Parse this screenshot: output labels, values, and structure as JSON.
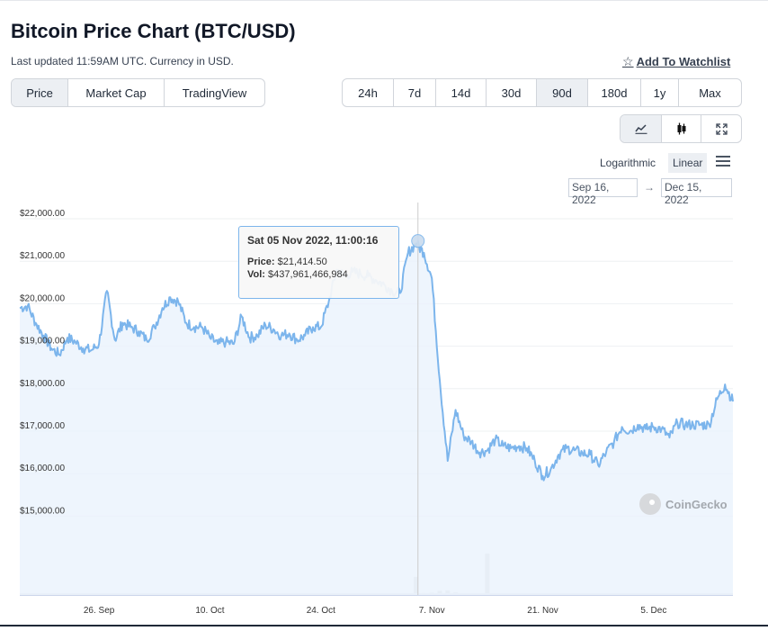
{
  "header": {
    "title": "Bitcoin Price Chart (BTC/USD)",
    "subtitle": "Last updated 11:59AM UTC. Currency in USD.",
    "watchlist_label": "Add To Watchlist"
  },
  "chart_tabs": [
    "Price",
    "Market Cap",
    "TradingView"
  ],
  "range_tabs": [
    "24h",
    "7d",
    "14d",
    "30d",
    "90d",
    "180d",
    "1y",
    "Max"
  ],
  "active_chart_tab": "Price",
  "active_range": "90d",
  "view_icons": [
    "line-chart-icon",
    "candlestick-icon",
    "fullscreen-icon"
  ],
  "scale": {
    "logarithmic_label": "Logarithmic",
    "linear_label": "Linear",
    "active": "Linear"
  },
  "date_range": {
    "from": "Sep 16, 2022",
    "arrow": "→",
    "to": "Dec 15, 2022"
  },
  "tooltip": {
    "date": "Sat 05 Nov 2022, 11:00:16",
    "price_label": "Price:",
    "price_value": "$21,414.50",
    "vol_label": "Vol:",
    "vol_value": "$437,961,466,984"
  },
  "watermark": "CoinGecko",
  "colors": {
    "line": "#7cb5ec",
    "area": "#eaf3fc",
    "volume": "#dcdcdc",
    "grid": "#eef0f2"
  },
  "chart_data": {
    "type": "area",
    "title": "Bitcoin Price Chart (BTC/USD)",
    "xlabel": "",
    "ylabel": "",
    "ylim": [
      14000,
      22250
    ],
    "xlim": [
      "2022-09-16",
      "2022-12-15"
    ],
    "yticks": [
      15000,
      16000,
      17000,
      18000,
      19000,
      20000,
      21000,
      22000
    ],
    "ytick_labels": [
      "$15,000.00",
      "$16,000.00",
      "$17,000.00",
      "$18,000.00",
      "$19,000.00",
      "$20,000.00",
      "$21,000.00",
      "$22,000.00"
    ],
    "xticks": [
      "2022-09-26",
      "2022-10-10",
      "2022-10-24",
      "2022-11-07",
      "2022-11-21",
      "2022-12-05"
    ],
    "xtick_labels": [
      "26. Sep",
      "10. Oct",
      "24. Oct",
      "7. Nov",
      "21. Nov",
      "5. Dec"
    ],
    "grid": true,
    "series": [
      {
        "type": "line",
        "x": [
          "2022-09-16",
          "2022-09-17",
          "2022-09-18",
          "2022-09-19",
          "2022-09-20",
          "2022-09-21",
          "2022-09-22",
          "2022-09-23",
          "2022-09-24",
          "2022-09-25",
          "2022-09-26",
          "2022-09-27",
          "2022-09-28",
          "2022-09-29",
          "2022-09-30",
          "2022-10-01",
          "2022-10-02",
          "2022-10-03",
          "2022-10-04",
          "2022-10-05",
          "2022-10-06",
          "2022-10-07",
          "2022-10-08",
          "2022-10-09",
          "2022-10-10",
          "2022-10-11",
          "2022-10-12",
          "2022-10-13",
          "2022-10-14",
          "2022-10-15",
          "2022-10-16",
          "2022-10-17",
          "2022-10-18",
          "2022-10-19",
          "2022-10-20",
          "2022-10-21",
          "2022-10-22",
          "2022-10-23",
          "2022-10-24",
          "2022-10-25",
          "2022-10-26",
          "2022-10-27",
          "2022-10-28",
          "2022-10-29",
          "2022-10-30",
          "2022-10-31",
          "2022-11-01",
          "2022-11-02",
          "2022-11-03",
          "2022-11-04",
          "2022-11-05",
          "2022-11-06",
          "2022-11-07",
          "2022-11-08",
          "2022-11-09",
          "2022-11-10",
          "2022-11-11",
          "2022-11-12",
          "2022-11-13",
          "2022-11-14",
          "2022-11-15",
          "2022-11-16",
          "2022-11-17",
          "2022-11-18",
          "2022-11-19",
          "2022-11-20",
          "2022-11-21",
          "2022-11-22",
          "2022-11-23",
          "2022-11-24",
          "2022-11-25",
          "2022-11-26",
          "2022-11-27",
          "2022-11-28",
          "2022-11-29",
          "2022-11-30",
          "2022-12-01",
          "2022-12-02",
          "2022-12-03",
          "2022-12-04",
          "2022-12-05",
          "2022-12-06",
          "2022-12-07",
          "2022-12-08",
          "2022-12-09",
          "2022-12-10",
          "2022-12-11",
          "2022-12-12",
          "2022-12-13",
          "2022-12-14",
          "2022-12-15"
        ],
        "y": [
          19900,
          19950,
          19550,
          19250,
          18950,
          18800,
          19200,
          19100,
          18950,
          18900,
          19050,
          20300,
          19150,
          19550,
          19450,
          19350,
          19150,
          19450,
          19900,
          20150,
          20050,
          19550,
          19450,
          19450,
          19200,
          19050,
          19100,
          19050,
          19700,
          19200,
          19250,
          19500,
          19400,
          19250,
          19300,
          19150,
          19250,
          19450,
          19450,
          20050,
          20800,
          20650,
          20750,
          20700,
          20650,
          20550,
          20450,
          20300,
          20250,
          21200,
          21414,
          21200,
          20600,
          18200,
          16300,
          17500,
          16900,
          16750,
          16500,
          16550,
          16800,
          16650,
          16600,
          16650,
          16600,
          16300,
          15950,
          16100,
          16450,
          16600,
          16550,
          16480,
          16450,
          16200,
          16500,
          16750,
          17100,
          17000,
          17150,
          17050,
          17100,
          17050,
          16850,
          17200,
          17150,
          17150,
          17150,
          17150,
          17750,
          18100,
          17700
        ]
      }
    ],
    "volume_axis": {
      "x": [
        "2022-11-03",
        "2022-11-04",
        "2022-11-05",
        "2022-11-06",
        "2022-11-07",
        "2022-11-08",
        "2022-11-09",
        "2022-11-10",
        "2022-11-11",
        "2022-11-14"
      ],
      "y": [
        20,
        25,
        437.96,
        45,
        55,
        100,
        110,
        60,
        40,
        1000
      ],
      "unit": "billions USD (relative)"
    },
    "hover": {
      "x": "2022-11-05",
      "y": 21414.5
    }
  }
}
